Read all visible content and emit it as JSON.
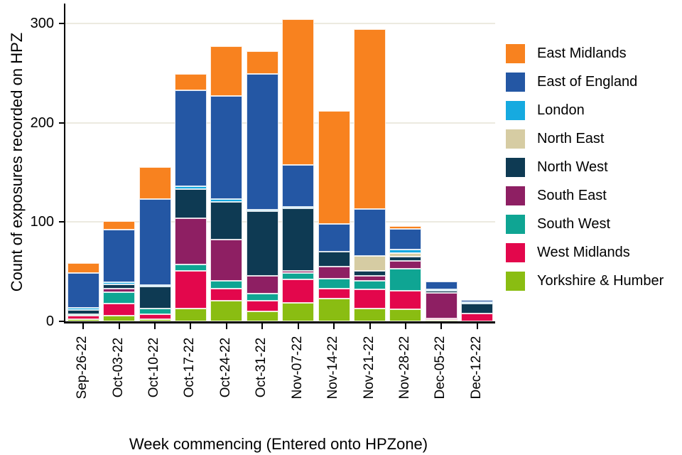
{
  "chart_data": {
    "type": "bar",
    "stacked": true,
    "title": "",
    "ylabel": "Count of exposures recorded on HPZ",
    "xlabel": "Week commencing (Entered onto HPZone)",
    "ylim": [
      0,
      300
    ],
    "yticks": [
      0,
      100,
      200,
      300
    ],
    "grid": "horizontal gridlines at yticks, drawn behind bars",
    "legend_position": "right",
    "stack_order": "stacking bottom-to-top is the reverse of the series list (Yorkshire & Humber at bottom, East Midlands on top)",
    "categories": [
      "Sep-26-22",
      "Oct-03-22",
      "Oct-10-22",
      "Oct-17-22",
      "Oct-24-22",
      "Oct-31-22",
      "Nov-07-22",
      "Nov-14-22",
      "Nov-21-22",
      "Nov-28-22",
      "Dec-05-22",
      "Dec-12-22"
    ],
    "series": [
      {
        "name": "East Midlands",
        "color": "#F8821F",
        "values": [
          10,
          9,
          32,
          16,
          50,
          23,
          147,
          114,
          181,
          3,
          0,
          0
        ]
      },
      {
        "name": "East of England",
        "color": "#2457A4",
        "values": [
          35,
          53,
          87,
          97,
          104,
          137,
          42,
          28,
          47,
          21,
          8,
          2
        ]
      },
      {
        "name": "London",
        "color": "#16AAE0",
        "values": [
          2,
          2,
          1,
          3,
          3,
          1,
          1,
          0,
          0,
          3,
          1,
          1
        ]
      },
      {
        "name": "North East",
        "color": "#D6CCA3",
        "values": [
          0,
          0,
          0,
          0,
          0,
          0,
          0,
          0,
          15,
          4,
          0,
          0
        ]
      },
      {
        "name": "North West",
        "color": "#0E3A53",
        "values": [
          4,
          4,
          22,
          29,
          38,
          65,
          63,
          15,
          5,
          4,
          2,
          10
        ]
      },
      {
        "name": "South East",
        "color": "#8E1F63",
        "values": [
          0,
          4,
          0,
          47,
          41,
          18,
          2,
          12,
          5,
          8,
          26,
          0
        ]
      },
      {
        "name": "South West",
        "color": "#0FA593",
        "values": [
          1,
          11,
          6,
          6,
          8,
          7,
          7,
          10,
          9,
          22,
          0,
          0
        ]
      },
      {
        "name": "West Midlands",
        "color": "#E3074C",
        "values": [
          4,
          12,
          5,
          38,
          12,
          11,
          23,
          10,
          19,
          19,
          1,
          8
        ]
      },
      {
        "name": "Yorkshire & Humber",
        "color": "#8ABD12",
        "values": [
          2,
          6,
          2,
          13,
          21,
          10,
          19,
          23,
          13,
          12,
          1,
          0
        ]
      }
    ],
    "bar_totals": [
      58,
      101,
      155,
      249,
      277,
      272,
      304,
      212,
      294,
      96,
      39,
      21
    ]
  },
  "colors": {
    "axis": "#000000",
    "text": "#000000",
    "gridline": "#ECEAE0",
    "background": "#FFFFFF",
    "segment_border": "#FFFFFF"
  }
}
